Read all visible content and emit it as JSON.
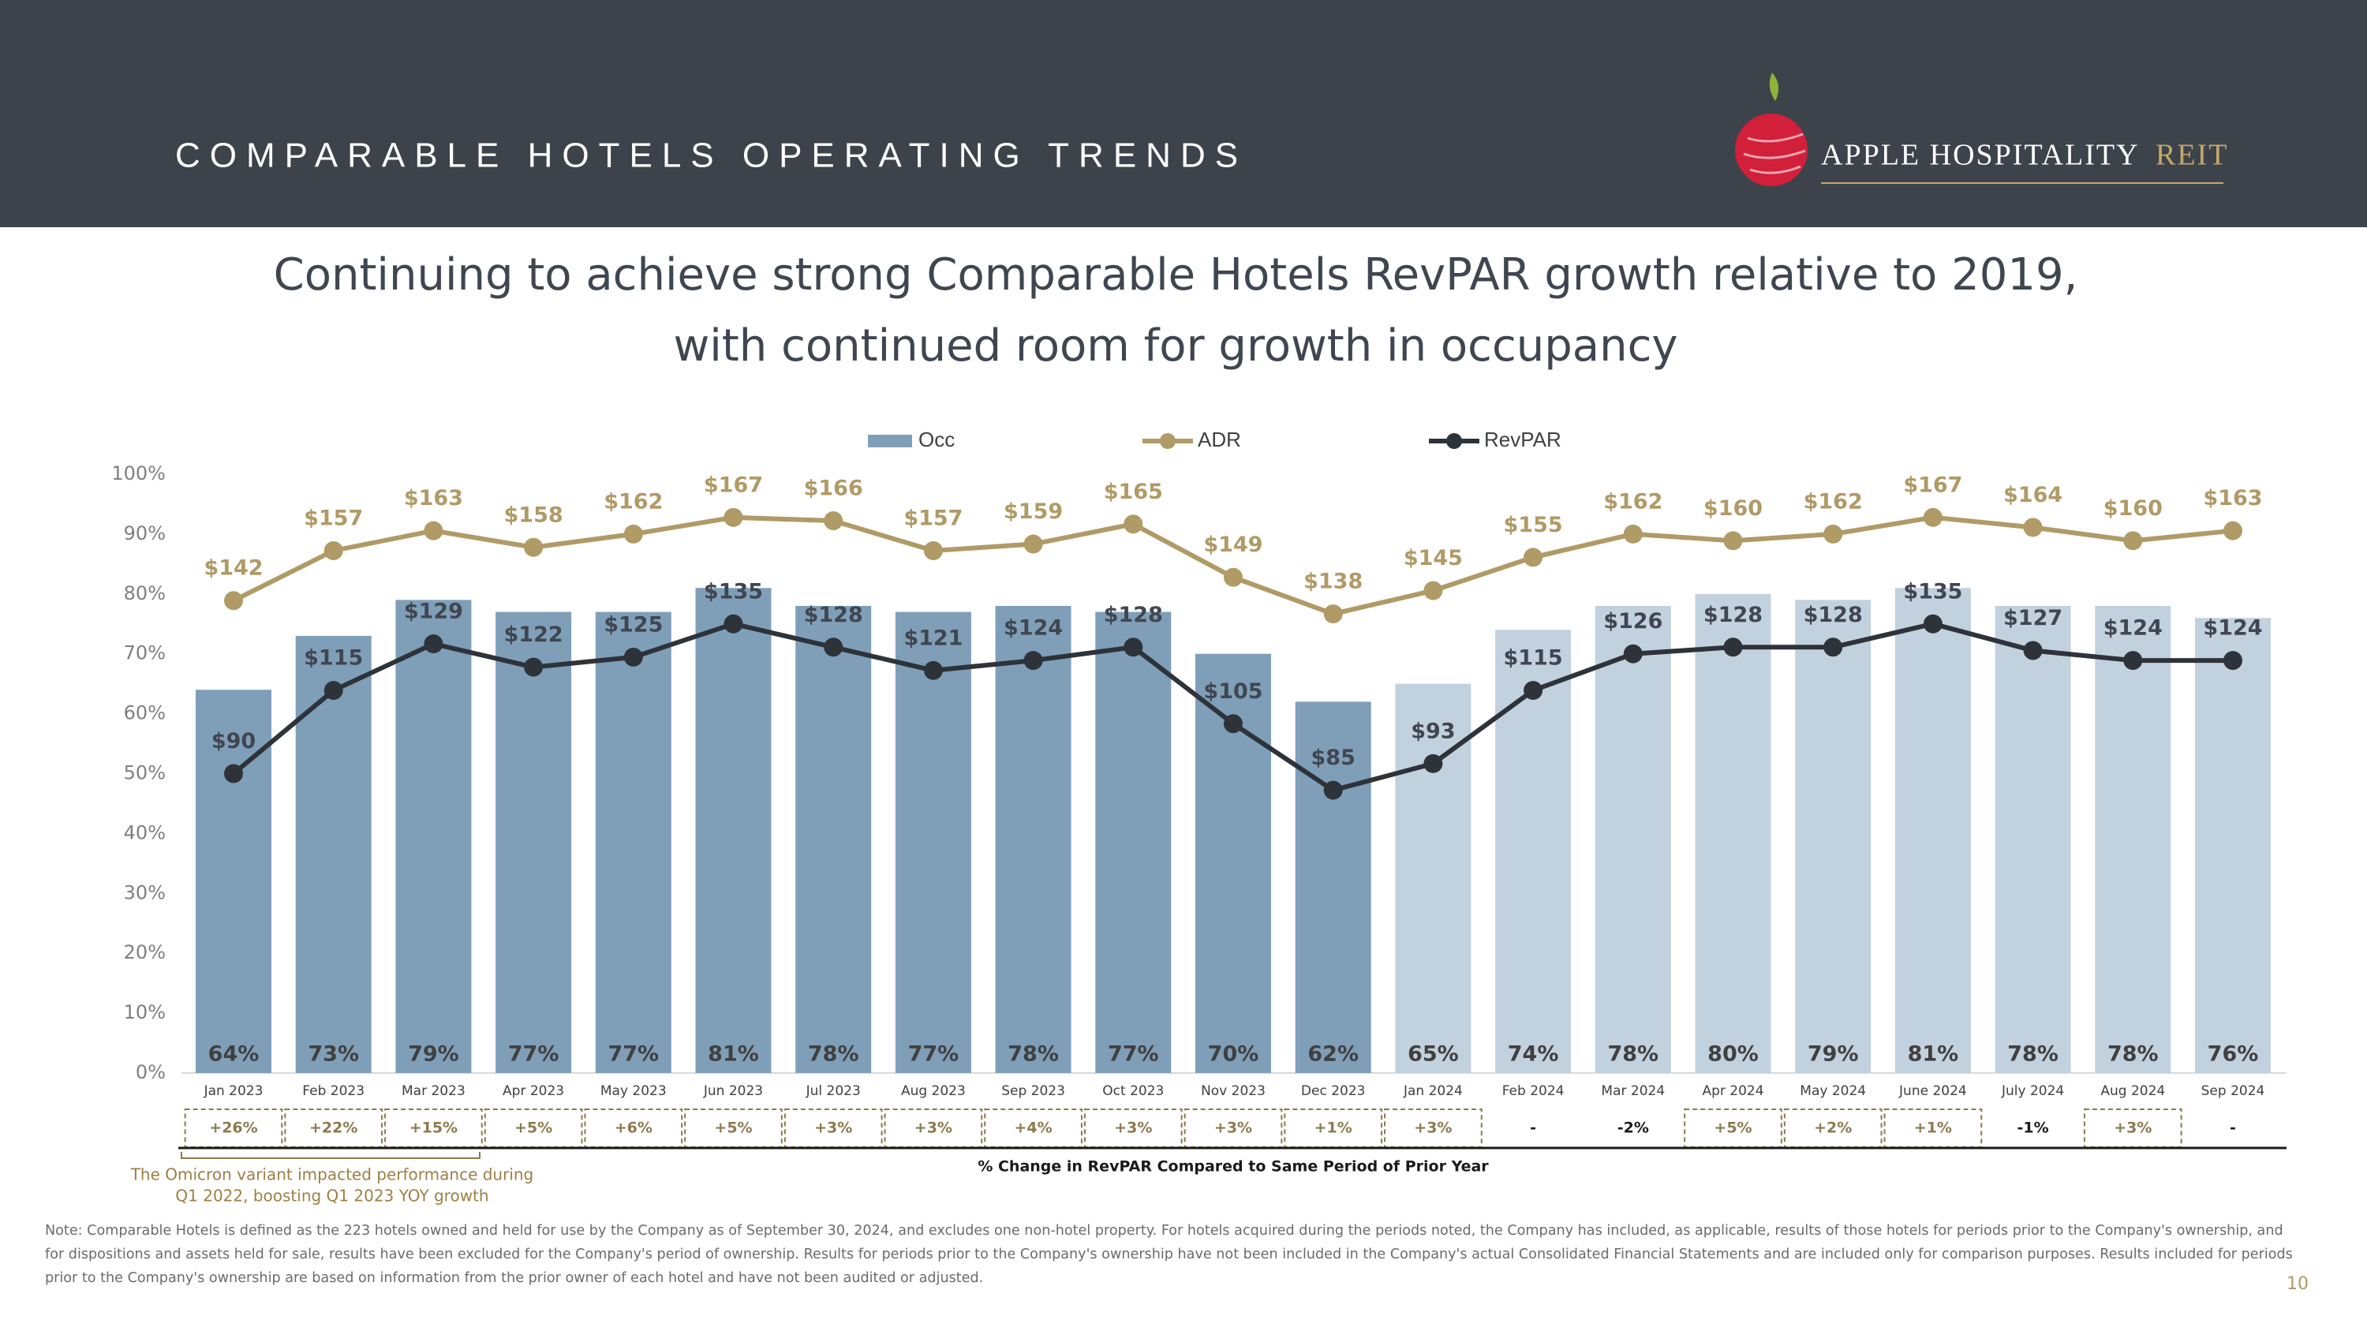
{
  "header": {
    "title": "COMPARABLE HOTELS OPERATING TRENDS",
    "logo": {
      "name": "APPLE HOSPITALITY",
      "suffix": "REIT"
    }
  },
  "chart_data": {
    "type": "bar",
    "title": [
      "Continuing to achieve strong Comparable Hotels RevPAR growth relative to 2019,",
      "with continued room for growth in occupancy"
    ],
    "categories": [
      "Jan 2023",
      "Feb 2023",
      "Mar 2023",
      "Apr 2023",
      "May 2023",
      "Jun 2023",
      "Jul 2023",
      "Aug 2023",
      "Sep 2023",
      "Oct 2023",
      "Nov 2023",
      "Dec 2023",
      "Jan 2024",
      "Feb 2024",
      "Mar 2024",
      "Apr 2024",
      "May 2024",
      "June 2024",
      "July 2024",
      "Aug 2024",
      "Sep 2024"
    ],
    "series": [
      {
        "name": "Occ",
        "type": "bar",
        "colors": [
          "#7f9fb9",
          "#7f9fb9",
          "#7f9fb9",
          "#7f9fb9",
          "#7f9fb9",
          "#7f9fb9",
          "#7f9fb9",
          "#7f9fb9",
          "#7f9fb9",
          "#7f9fb9",
          "#7f9fb9",
          "#7f9fb9",
          "#c2d1de",
          "#c2d1de",
          "#c2d1de",
          "#c2d1de",
          "#c2d1de",
          "#c2d1de",
          "#c2d1de",
          "#c2d1de",
          "#c2d1de"
        ],
        "values": [
          64,
          73,
          79,
          77,
          77,
          81,
          78,
          77,
          78,
          77,
          70,
          62,
          65,
          74,
          78,
          80,
          79,
          81,
          78,
          78,
          76
        ],
        "value_labels": [
          "64%",
          "73%",
          "79%",
          "77%",
          "77%",
          "81%",
          "78%",
          "77%",
          "78%",
          "77%",
          "70%",
          "62%",
          "65%",
          "74%",
          "78%",
          "80%",
          "79%",
          "81%",
          "78%",
          "78%",
          "76%"
        ]
      },
      {
        "name": "ADR",
        "type": "line",
        "axis": "y2",
        "color": "#b09a66",
        "values": [
          142,
          157,
          163,
          158,
          162,
          167,
          166,
          157,
          159,
          165,
          149,
          138,
          145,
          155,
          162,
          160,
          162,
          167,
          164,
          160,
          163
        ],
        "value_labels": [
          "$142",
          "$157",
          "$163",
          "$158",
          "$162",
          "$167",
          "$166",
          "$157",
          "$159",
          "$165",
          "$149",
          "$138",
          "$145",
          "$155",
          "$162",
          "$160",
          "$162",
          "$167",
          "$164",
          "$160",
          "$163"
        ]
      },
      {
        "name": "RevPAR",
        "type": "line",
        "axis": "y2",
        "color": "#2d3339",
        "values": [
          90,
          115,
          129,
          122,
          125,
          135,
          128,
          121,
          124,
          128,
          105,
          85,
          93,
          115,
          126,
          128,
          128,
          135,
          127,
          124,
          124
        ],
        "value_labels": [
          "$90",
          "$115",
          "$129",
          "$122",
          "$125",
          "$135",
          "$128",
          "$121",
          "$124",
          "$128",
          "$105",
          "$85",
          "$93",
          "$115",
          "$126",
          "$128",
          "$128",
          "$135",
          "$127",
          "$124",
          "$124"
        ]
      }
    ],
    "ylim": [
      0,
      100
    ],
    "yticks": [
      {
        "value": 0,
        "label": "0%"
      },
      {
        "value": 10,
        "label": "10%"
      },
      {
        "value": 20,
        "label": "20%"
      },
      {
        "value": 30,
        "label": "30%"
      },
      {
        "value": 40,
        "label": "40%"
      },
      {
        "value": 50,
        "label": "50%"
      },
      {
        "value": 60,
        "label": "60%"
      },
      {
        "value": 70,
        "label": "70%"
      },
      {
        "value": 80,
        "label": "80%"
      },
      {
        "value": 90,
        "label": "90%"
      },
      {
        "value": 100,
        "label": "100%"
      }
    ],
    "y2lim": [
      0,
      180
    ],
    "change_row": {
      "labels": [
        "+26%",
        "+22%",
        "+15%",
        "+5%",
        "+6%",
        "+5%",
        "+3%",
        "+3%",
        "+4%",
        "+3%",
        "+3%",
        "+1%",
        "+3%",
        "-",
        "-2%",
        "+5%",
        "+2%",
        "+1%",
        "-1%",
        "+3%",
        "-"
      ],
      "boxed": [
        true,
        true,
        true,
        true,
        true,
        true,
        true,
        true,
        true,
        true,
        true,
        true,
        true,
        false,
        false,
        true,
        true,
        true,
        false,
        true,
        false
      ],
      "caption": "% Change in RevPAR Compared to Same Period of Prior Year"
    },
    "annotation": [
      "The Omicron variant impacted performance during",
      "Q1 2022, boosting Q1 2023 YOY growth"
    ]
  },
  "footnote": [
    "Note: Comparable Hotels is defined as the 223 hotels owned and held for use by the Company as of September 30, 2024, and excludes one non-hotel property. For hotels acquired during the periods noted, the Company has included, as applicable, results of those hotels for periods prior to the Company's ownership, and",
    "for dispositions and assets held for sale, results have been excluded for the Company's period of ownership. Results for periods prior to the Company's ownership have not been included in the Company's actual Consolidated Financial Statements and are included only for comparison purposes. Results included for periods",
    "prior to the Company's ownership are based on information from the prior owner of each hotel and have not been audited or adjusted."
  ],
  "page_number": "10"
}
